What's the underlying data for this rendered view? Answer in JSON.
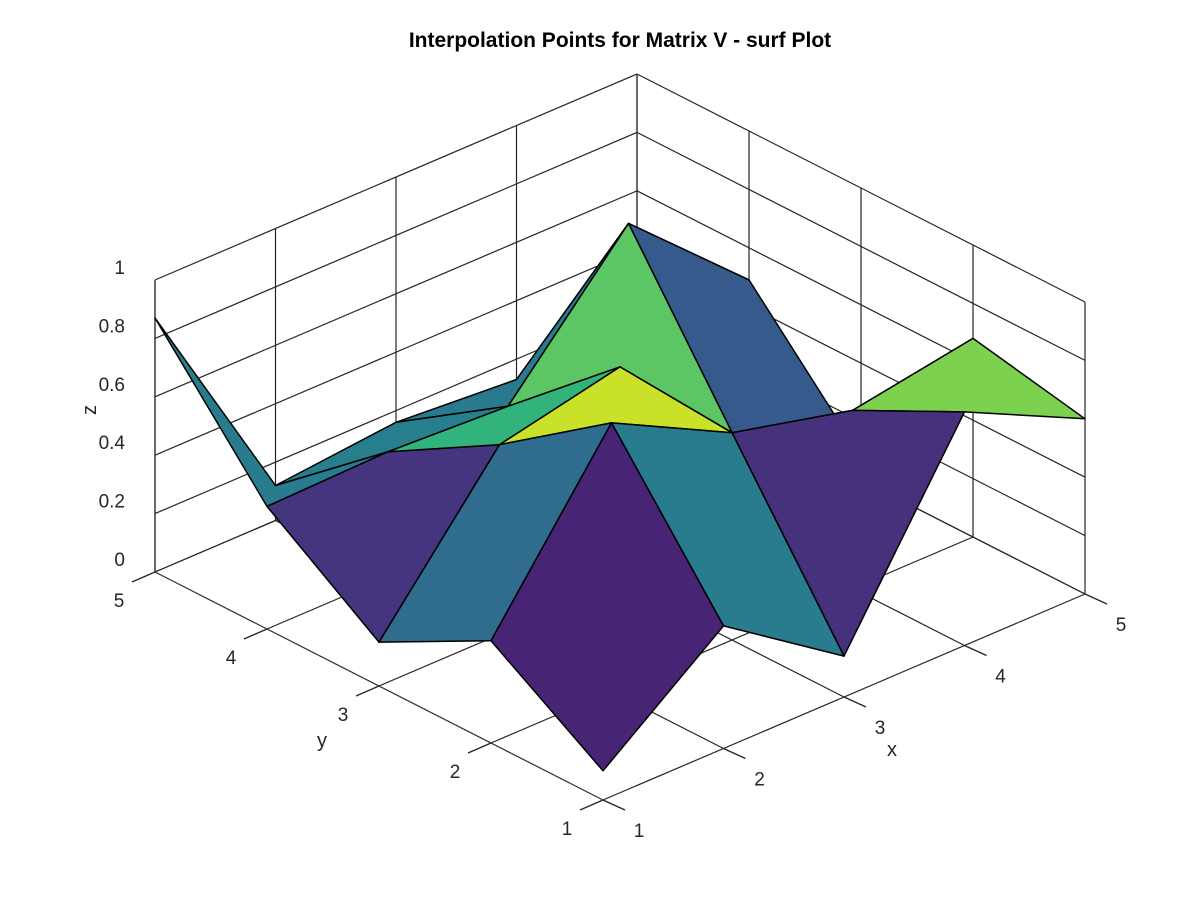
{
  "chart_data": {
    "type": "surface",
    "title": "Interpolation Points for Matrix V - surf Plot",
    "xlabel": "x",
    "ylabel": "y",
    "zlabel": "z",
    "x": [
      1,
      2,
      3,
      4,
      5
    ],
    "y": [
      1,
      2,
      3,
      4,
      5
    ],
    "xlim": [
      1,
      5
    ],
    "ylim": [
      1,
      5
    ],
    "zlim": [
      0,
      1
    ],
    "x_ticks": [
      "1",
      "2",
      "3",
      "4",
      "5"
    ],
    "y_ticks": [
      "1",
      "2",
      "3",
      "4",
      "5"
    ],
    "z_ticks": [
      "0",
      "0.2",
      "0.4",
      "0.6",
      "0.8",
      "1"
    ],
    "z_values_rows_by_y": [
      [
        0.1,
        0.42,
        0.14,
        0.8,
        0.6
      ],
      [
        0.35,
        0.92,
        0.71,
        0.61,
        0.68
      ],
      [
        0.15,
        0.65,
        0.74,
        0.28,
        0.08
      ],
      [
        0.42,
        0.43,
        0.41,
        0.86,
        0.49
      ],
      [
        0.87,
        0.12,
        0.16,
        0.13,
        0.25
      ]
    ],
    "colormap": "viridis",
    "colormap_stops": [
      "#440154",
      "#482878",
      "#3e4a89",
      "#31688e",
      "#26828e",
      "#1f9e89",
      "#35b779",
      "#6ece58",
      "#b5de2b",
      "#fde725"
    ],
    "grid": true
  }
}
